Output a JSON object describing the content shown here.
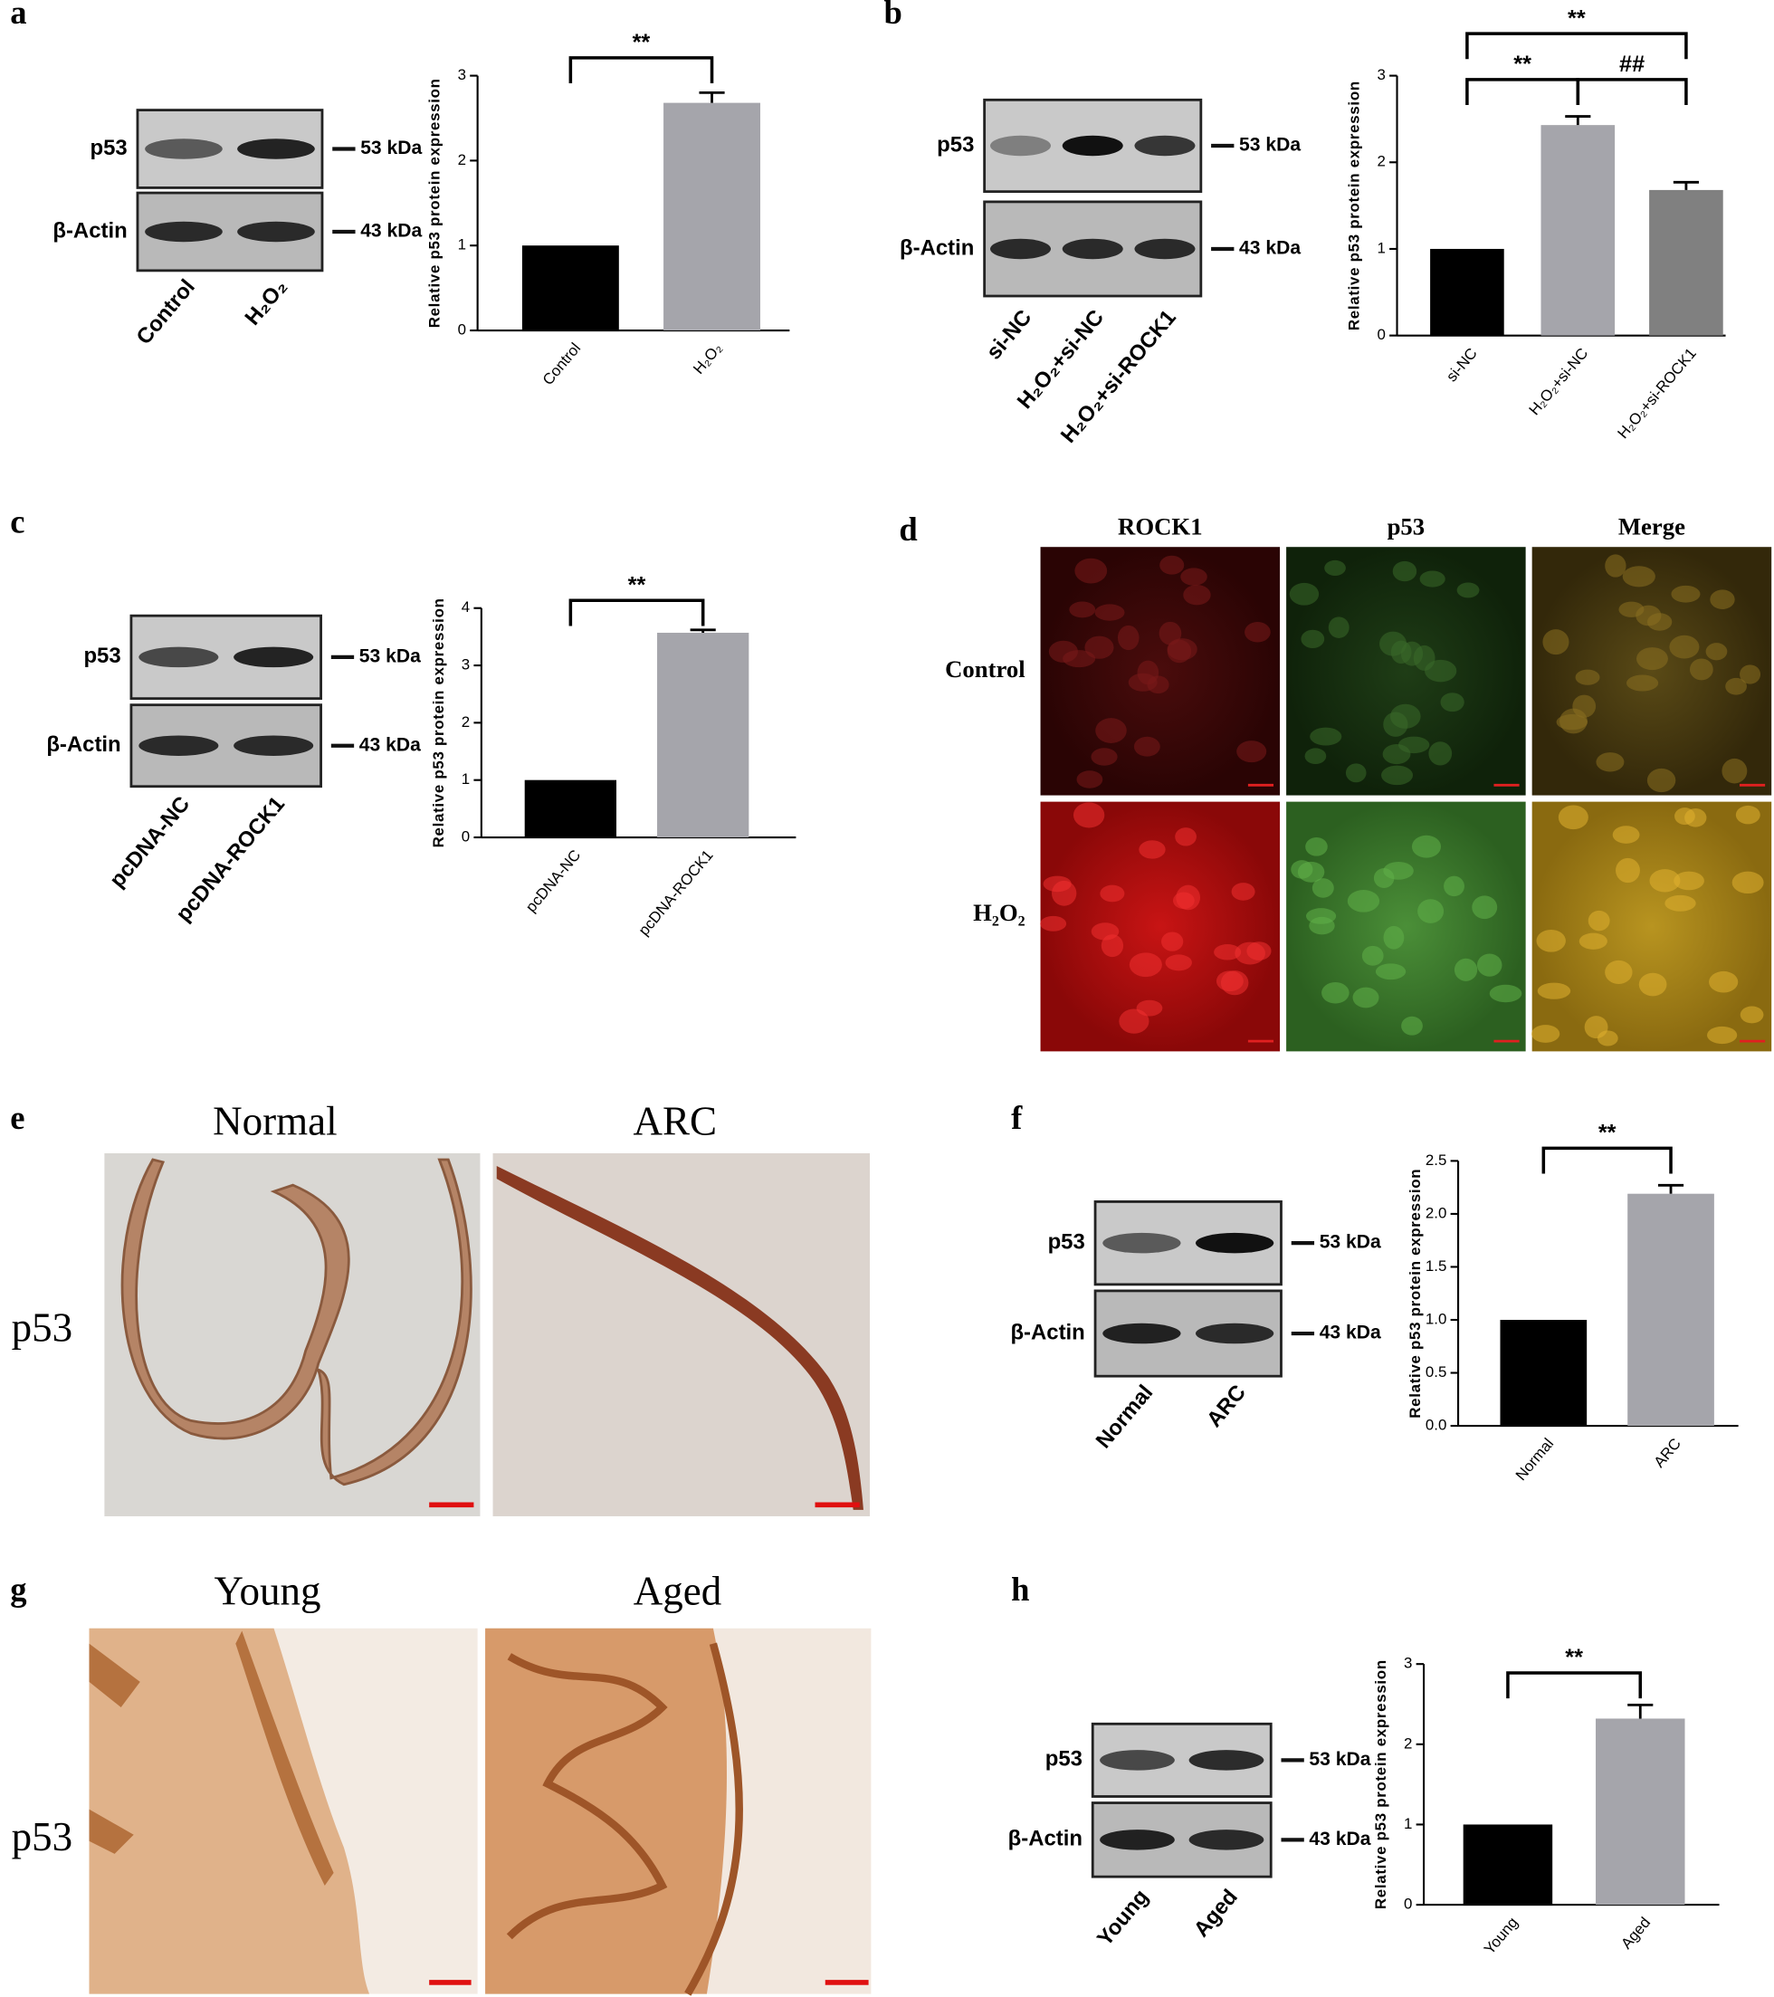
{
  "panel_labels": [
    "a",
    "b",
    "c",
    "d",
    "e",
    "f",
    "g",
    "h"
  ],
  "chart_data": [
    {
      "type": "bar",
      "y_label": "Relative p53 protein expression",
      "categories": [
        "Control",
        "H₂O₂"
      ],
      "values": [
        1,
        2.68
      ],
      "errors": [
        null,
        0.12
      ],
      "colors": [
        "#000000",
        "#a5a5ab"
      ],
      "ylim": [
        0,
        3
      ],
      "yticks": [
        0,
        1,
        2,
        3
      ],
      "annotations": [
        "**"
      ]
    },
    {
      "type": "bar",
      "y_label": "Relative p53 protein expression",
      "categories": [
        "si-NC",
        "H₂O₂+si-NC",
        "H₂O₂+si-ROCK1"
      ],
      "values": [
        1,
        2.43,
        1.68
      ],
      "errors": [
        null,
        0.1,
        0.09
      ],
      "colors": [
        "#000000",
        "#a5a5ab",
        "#808080"
      ],
      "ylim": [
        0,
        3
      ],
      "yticks": [
        0,
        1,
        2,
        3
      ],
      "annotations": [
        "**",
        "##",
        "**"
      ]
    },
    {
      "type": "bar",
      "y_label": "Relative p53 protein expression",
      "categories": [
        "pcDNA-NC",
        "pcDNA-ROCK1"
      ],
      "values": [
        1,
        3.57
      ],
      "errors": [
        null,
        0.05
      ],
      "colors": [
        "#000000",
        "#a5a5ab"
      ],
      "ylim": [
        0,
        4
      ],
      "yticks": [
        0,
        1,
        2,
        3,
        4
      ],
      "annotations": [
        "**"
      ]
    },
    {
      "type": "bar",
      "y_label": "Relative p53 protein expression",
      "categories": [
        "Normal",
        "ARC"
      ],
      "values": [
        1,
        2.19
      ],
      "errors": [
        null,
        0.08
      ],
      "colors": [
        "#000000",
        "#a5a5ab"
      ],
      "ylim": [
        0,
        2.5
      ],
      "yticks": [
        {
          "value": 0,
          "label": "0.0"
        },
        0.5,
        {
          "value": 1,
          "label": "1.0"
        },
        1.5,
        {
          "value": 2,
          "label": "2.0"
        },
        2.5
      ],
      "annotations": [
        "**"
      ]
    },
    {
      "type": "bar",
      "y_label": "Relative p53 protein expression",
      "categories": [
        "Young",
        "Aged"
      ],
      "values": [
        1,
        2.32
      ],
      "errors": [
        null,
        0.17
      ],
      "colors": [
        "#000000",
        "#a5a5ab"
      ],
      "ylim": [
        0,
        3
      ],
      "yticks": [
        0,
        1,
        2,
        3
      ],
      "annotations": [
        "**"
      ]
    }
  ],
  "blots": [
    {
      "bands": [
        "p53",
        "β-Actin"
      ],
      "sizes": [
        "53 kDa",
        "43 kDa"
      ],
      "lanes": [
        "Control",
        "H₂O₂"
      ]
    },
    {
      "bands": [
        "p53",
        "β-Actin"
      ],
      "sizes": [
        "53 kDa",
        "43 kDa"
      ],
      "lanes": [
        "si-NC",
        "H₂O₂+si-NC",
        "H₂O₂+si-ROCK1"
      ]
    },
    {
      "bands": [
        "p53",
        "β-Actin"
      ],
      "sizes": [
        "53 kDa",
        "43 kDa"
      ],
      "lanes": [
        "pcDNA-NC",
        "pcDNA-ROCK1"
      ]
    },
    {
      "bands": [
        "p53",
        "β-Actin"
      ],
      "sizes": [
        "53 kDa",
        "43 kDa"
      ],
      "lanes": [
        "Normal",
        "ARC"
      ]
    },
    {
      "bands": [
        "p53",
        "β-Actin"
      ],
      "sizes": [
        "53 kDa",
        "43 kDa"
      ],
      "lanes": [
        "Young",
        "Aged"
      ]
    }
  ],
  "immunofluorescence": {
    "columns": [
      "ROCK1",
      "p53",
      "Merge"
    ],
    "rows": [
      "Control",
      "H₂O₂"
    ]
  },
  "ihc": [
    {
      "row_label": "p53",
      "columns": [
        "Normal",
        "ARC"
      ]
    },
    {
      "row_label": "p53",
      "columns": [
        "Young",
        "Aged"
      ]
    }
  ]
}
